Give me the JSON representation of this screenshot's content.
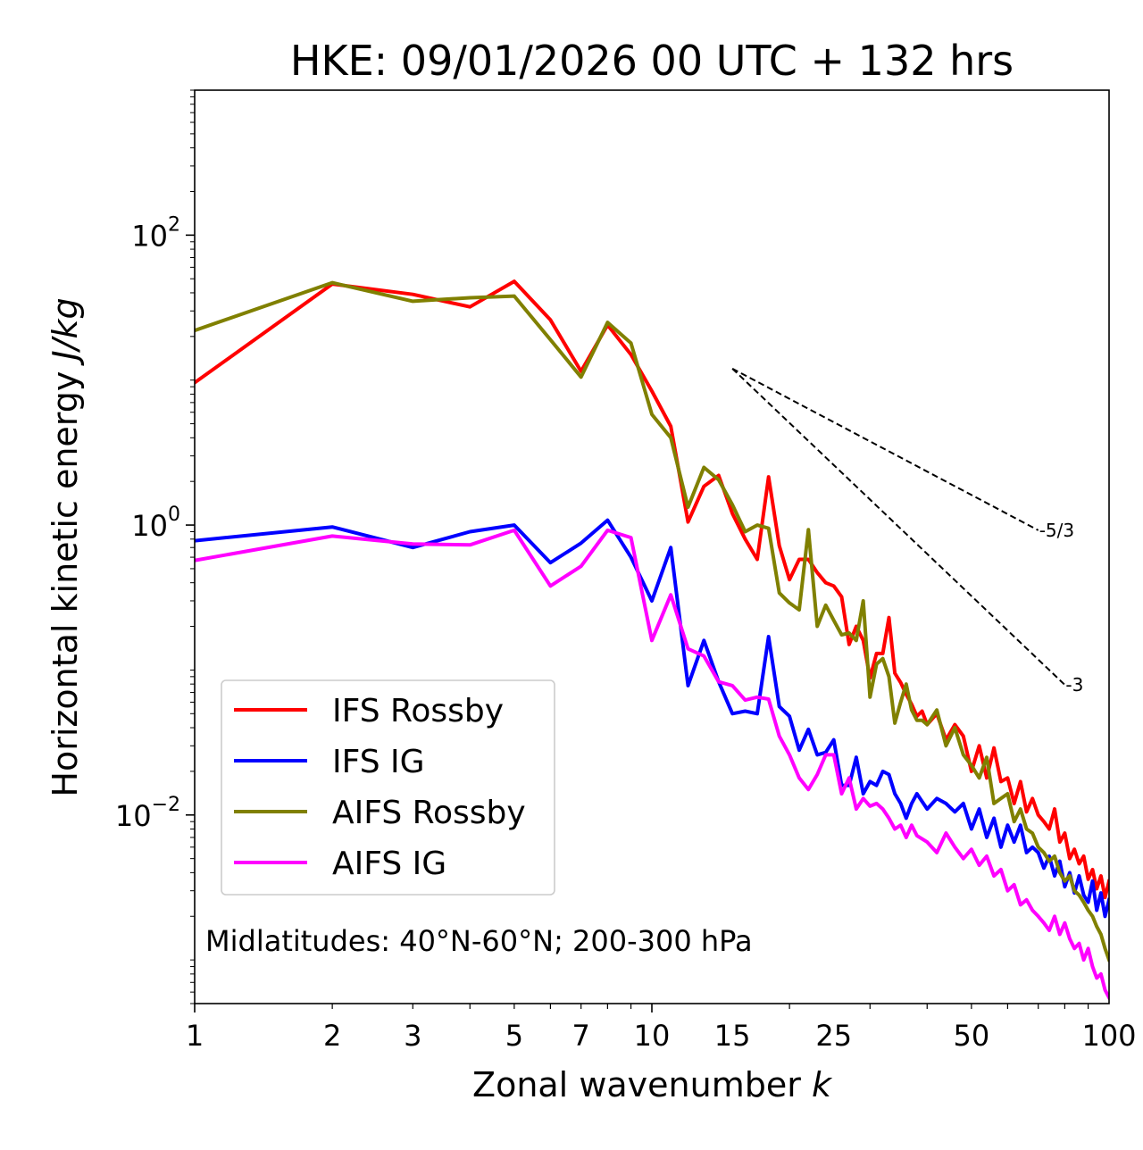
{
  "chart_data": {
    "type": "line",
    "title": "HKE: 09/01/2026 00 UTC + 132 hrs",
    "xlabel": "Zonal wavenumber",
    "xlabel_var": "k",
    "ylabel": "Horizontal kinetic energy",
    "ylabel_units": "J/kg",
    "xscale": "log",
    "yscale": "log",
    "xlim": [
      1,
      100
    ],
    "ylim": [
      0.0005,
      1000
    ],
    "x_ticks": [
      1,
      2,
      3,
      5,
      7,
      10,
      15,
      25,
      50,
      100
    ],
    "x_tick_labels": [
      "1",
      "2",
      "3",
      "5",
      "7",
      "10",
      "15",
      "25",
      "50",
      "100"
    ],
    "y_ticks": [
      0.01,
      1,
      100
    ],
    "y_tick_labels": [
      {
        "base": "10",
        "exp": "−2"
      },
      {
        "base": "10",
        "exp": "0"
      },
      {
        "base": "10",
        "exp": "2"
      }
    ],
    "legend_position": "lower-left",
    "annotation": "Midlatitudes: 40°N-60°N; 200-300 hPa",
    "reference_lines": [
      {
        "label": "-5/3",
        "slope": -1.6667,
        "x_start": 15,
        "y_start": 12,
        "x_end": 70
      },
      {
        "label": "-3",
        "slope": -3,
        "x_start": 15,
        "y_start": 12,
        "x_end": 80
      }
    ],
    "series": [
      {
        "name": "IFS Rossby",
        "color": "#ff0000",
        "points": [
          [
            1,
            9.6
          ],
          [
            2,
            46
          ],
          [
            3,
            39
          ],
          [
            4,
            32
          ],
          [
            5,
            48
          ],
          [
            6,
            26
          ],
          [
            7,
            11.5
          ],
          [
            8,
            24
          ],
          [
            9,
            15
          ],
          [
            10,
            8.4
          ],
          [
            11,
            4.8
          ],
          [
            12,
            1.05
          ],
          [
            13,
            1.85
          ],
          [
            14,
            2.2
          ],
          [
            15,
            1.2
          ],
          [
            16,
            0.8
          ],
          [
            17,
            0.58
          ],
          [
            18,
            2.15
          ],
          [
            19,
            0.72
          ],
          [
            20,
            0.42
          ],
          [
            21,
            0.58
          ],
          [
            22,
            0.58
          ],
          [
            23,
            0.47
          ],
          [
            24,
            0.4
          ],
          [
            25,
            0.38
          ],
          [
            26,
            0.32
          ],
          [
            27,
            0.15
          ],
          [
            28,
            0.2
          ],
          [
            29,
            0.16
          ],
          [
            30,
            0.088
          ],
          [
            31,
            0.13
          ],
          [
            32,
            0.13
          ],
          [
            33,
            0.23
          ],
          [
            34,
            0.095
          ],
          [
            35,
            0.082
          ],
          [
            36,
            0.068
          ],
          [
            37,
            0.058
          ],
          [
            38,
            0.048
          ],
          [
            39,
            0.052
          ],
          [
            40,
            0.042
          ],
          [
            42,
            0.05
          ],
          [
            44,
            0.033
          ],
          [
            46,
            0.042
          ],
          [
            48,
            0.035
          ],
          [
            50,
            0.02
          ],
          [
            52,
            0.03
          ],
          [
            54,
            0.018
          ],
          [
            56,
            0.029
          ],
          [
            58,
            0.017
          ],
          [
            60,
            0.018
          ],
          [
            62,
            0.012
          ],
          [
            64,
            0.017
          ],
          [
            66,
            0.0105
          ],
          [
            68,
            0.013
          ],
          [
            70,
            0.01
          ],
          [
            72,
            0.009
          ],
          [
            74,
            0.008
          ],
          [
            76,
            0.011
          ],
          [
            78,
            0.0065
          ],
          [
            80,
            0.0075
          ],
          [
            82,
            0.005
          ],
          [
            84,
            0.0058
          ],
          [
            86,
            0.0046
          ],
          [
            88,
            0.0052
          ],
          [
            90,
            0.0036
          ],
          [
            92,
            0.0042
          ],
          [
            94,
            0.0031
          ],
          [
            96,
            0.0038
          ],
          [
            98,
            0.0027
          ],
          [
            100,
            0.0035
          ]
        ]
      },
      {
        "name": "IFS IG",
        "color": "#0000ff",
        "points": [
          [
            1,
            0.78
          ],
          [
            2,
            0.97
          ],
          [
            3,
            0.7
          ],
          [
            4,
            0.9
          ],
          [
            5,
            1.0
          ],
          [
            6,
            0.55
          ],
          [
            7,
            0.75
          ],
          [
            8,
            1.08
          ],
          [
            9,
            0.6
          ],
          [
            10,
            0.3
          ],
          [
            11,
            0.7
          ],
          [
            12,
            0.078
          ],
          [
            13,
            0.16
          ],
          [
            14,
            0.083
          ],
          [
            15,
            0.05
          ],
          [
            16,
            0.052
          ],
          [
            17,
            0.05
          ],
          [
            18,
            0.17
          ],
          [
            19,
            0.056
          ],
          [
            20,
            0.048
          ],
          [
            21,
            0.028
          ],
          [
            22,
            0.039
          ],
          [
            23,
            0.026
          ],
          [
            24,
            0.027
          ],
          [
            25,
            0.033
          ],
          [
            26,
            0.016
          ],
          [
            27,
            0.016
          ],
          [
            28,
            0.025
          ],
          [
            29,
            0.014
          ],
          [
            30,
            0.017
          ],
          [
            31,
            0.016
          ],
          [
            32,
            0.02
          ],
          [
            33,
            0.019
          ],
          [
            34,
            0.014
          ],
          [
            35,
            0.012
          ],
          [
            36,
            0.0095
          ],
          [
            37,
            0.012
          ],
          [
            38,
            0.014
          ],
          [
            40,
            0.011
          ],
          [
            42,
            0.013
          ],
          [
            44,
            0.012
          ],
          [
            46,
            0.0105
          ],
          [
            48,
            0.012
          ],
          [
            50,
            0.008
          ],
          [
            52,
            0.011
          ],
          [
            54,
            0.007
          ],
          [
            56,
            0.0095
          ],
          [
            58,
            0.006
          ],
          [
            60,
            0.0085
          ],
          [
            62,
            0.0065
          ],
          [
            64,
            0.0085
          ],
          [
            66,
            0.0055
          ],
          [
            68,
            0.006
          ],
          [
            70,
            0.0055
          ],
          [
            72,
            0.0043
          ],
          [
            74,
            0.0052
          ],
          [
            76,
            0.0038
          ],
          [
            78,
            0.0048
          ],
          [
            80,
            0.0032
          ],
          [
            82,
            0.004
          ],
          [
            84,
            0.0029
          ],
          [
            86,
            0.0038
          ],
          [
            88,
            0.0028
          ],
          [
            90,
            0.0025
          ],
          [
            92,
            0.0035
          ],
          [
            94,
            0.0022
          ],
          [
            96,
            0.0029
          ],
          [
            98,
            0.002
          ],
          [
            100,
            0.0026
          ]
        ]
      },
      {
        "name": "AIFS Rossby",
        "color": "#808000",
        "points": [
          [
            1,
            22
          ],
          [
            2,
            47
          ],
          [
            3,
            35
          ],
          [
            4,
            37
          ],
          [
            5,
            38
          ],
          [
            6,
            19
          ],
          [
            7,
            10.5
          ],
          [
            8,
            25
          ],
          [
            9,
            18
          ],
          [
            10,
            5.8
          ],
          [
            11,
            4.0
          ],
          [
            12,
            1.33
          ],
          [
            13,
            2.5
          ],
          [
            14,
            2.05
          ],
          [
            15,
            1.38
          ],
          [
            16,
            0.9
          ],
          [
            17,
            1.0
          ],
          [
            18,
            0.95
          ],
          [
            19,
            0.34
          ],
          [
            20,
            0.29
          ],
          [
            21,
            0.26
          ],
          [
            22,
            0.93
          ],
          [
            23,
            0.2
          ],
          [
            24,
            0.28
          ],
          [
            25,
            0.22
          ],
          [
            26,
            0.175
          ],
          [
            27,
            0.18
          ],
          [
            28,
            0.16
          ],
          [
            29,
            0.3
          ],
          [
            30,
            0.065
          ],
          [
            31,
            0.11
          ],
          [
            32,
            0.12
          ],
          [
            33,
            0.09
          ],
          [
            34,
            0.043
          ],
          [
            35,
            0.06
          ],
          [
            36,
            0.08
          ],
          [
            37,
            0.053
          ],
          [
            38,
            0.045
          ],
          [
            39,
            0.045
          ],
          [
            40,
            0.042
          ],
          [
            42,
            0.053
          ],
          [
            44,
            0.03
          ],
          [
            46,
            0.04
          ],
          [
            48,
            0.026
          ],
          [
            50,
            0.022
          ],
          [
            52,
            0.018
          ],
          [
            54,
            0.025
          ],
          [
            56,
            0.012
          ],
          [
            58,
            0.013
          ],
          [
            60,
            0.014
          ],
          [
            62,
            0.009
          ],
          [
            64,
            0.011
          ],
          [
            66,
            0.008
          ],
          [
            68,
            0.0075
          ],
          [
            70,
            0.006
          ],
          [
            72,
            0.0055
          ],
          [
            74,
            0.0048
          ],
          [
            76,
            0.0052
          ],
          [
            78,
            0.004
          ],
          [
            80,
            0.0035
          ],
          [
            82,
            0.0038
          ],
          [
            84,
            0.003
          ],
          [
            86,
            0.0028
          ],
          [
            88,
            0.0025
          ],
          [
            90,
            0.0022
          ],
          [
            92,
            0.002
          ],
          [
            94,
            0.0017
          ],
          [
            96,
            0.0015
          ],
          [
            98,
            0.0012
          ],
          [
            100,
            0.001
          ]
        ]
      },
      {
        "name": "AIFS IG",
        "color": "#ff00ff",
        "points": [
          [
            1,
            0.57
          ],
          [
            2,
            0.84
          ],
          [
            3,
            0.74
          ],
          [
            4,
            0.73
          ],
          [
            5,
            0.92
          ],
          [
            6,
            0.38
          ],
          [
            7,
            0.52
          ],
          [
            8,
            0.92
          ],
          [
            9,
            0.82
          ],
          [
            10,
            0.16
          ],
          [
            11,
            0.33
          ],
          [
            12,
            0.14
          ],
          [
            13,
            0.125
          ],
          [
            14,
            0.083
          ],
          [
            15,
            0.078
          ],
          [
            16,
            0.062
          ],
          [
            17,
            0.065
          ],
          [
            18,
            0.063
          ],
          [
            19,
            0.035
          ],
          [
            20,
            0.026
          ],
          [
            21,
            0.018
          ],
          [
            22,
            0.015
          ],
          [
            23,
            0.019
          ],
          [
            24,
            0.026
          ],
          [
            25,
            0.026
          ],
          [
            26,
            0.014
          ],
          [
            27,
            0.018
          ],
          [
            28,
            0.011
          ],
          [
            29,
            0.013
          ],
          [
            30,
            0.0115
          ],
          [
            31,
            0.012
          ],
          [
            32,
            0.011
          ],
          [
            33,
            0.0095
          ],
          [
            34,
            0.008
          ],
          [
            35,
            0.0085
          ],
          [
            36,
            0.007
          ],
          [
            37,
            0.0085
          ],
          [
            38,
            0.0072
          ],
          [
            40,
            0.0065
          ],
          [
            42,
            0.0055
          ],
          [
            44,
            0.0075
          ],
          [
            46,
            0.006
          ],
          [
            48,
            0.005
          ],
          [
            50,
            0.0058
          ],
          [
            52,
            0.0045
          ],
          [
            54,
            0.0052
          ],
          [
            56,
            0.0038
          ],
          [
            58,
            0.0042
          ],
          [
            60,
            0.003
          ],
          [
            62,
            0.0033
          ],
          [
            64,
            0.0024
          ],
          [
            66,
            0.0026
          ],
          [
            68,
            0.0022
          ],
          [
            70,
            0.002
          ],
          [
            72,
            0.0018
          ],
          [
            74,
            0.0016
          ],
          [
            76,
            0.002
          ],
          [
            78,
            0.0015
          ],
          [
            80,
            0.0018
          ],
          [
            82,
            0.0014
          ],
          [
            84,
            0.0012
          ],
          [
            86,
            0.0013
          ],
          [
            88,
            0.001
          ],
          [
            90,
            0.0012
          ],
          [
            92,
            0.0009
          ],
          [
            94,
            0.00075
          ],
          [
            96,
            0.0008
          ],
          [
            98,
            0.00062
          ],
          [
            100,
            0.00055
          ]
        ]
      }
    ]
  }
}
